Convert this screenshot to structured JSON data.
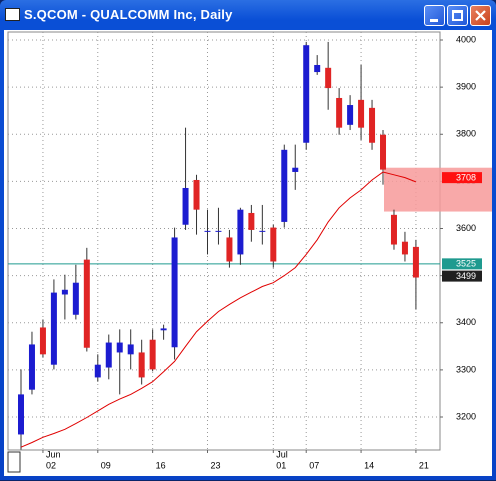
{
  "chart_data": {
    "type": "candlestick",
    "title": "S.QCOM - QUALCOMM Inc, Daily",
    "categories": [
      null,
      null,
      "02",
      null,
      null,
      null,
      null,
      "09",
      null,
      null,
      null,
      null,
      "16",
      null,
      null,
      null,
      null,
      "23",
      null,
      null,
      null,
      null,
      null,
      "01",
      null,
      null,
      "07",
      null,
      null,
      null,
      null,
      "14",
      null,
      null,
      null,
      null,
      "21"
    ],
    "months": [
      null,
      null,
      "Jun",
      null,
      null,
      null,
      null,
      null,
      null,
      null,
      null,
      null,
      null,
      null,
      null,
      null,
      null,
      null,
      null,
      null,
      null,
      null,
      null,
      "Jul",
      null,
      null,
      null,
      null,
      null,
      null,
      null,
      null,
      null,
      null,
      null,
      null,
      null
    ],
    "open": [
      3163,
      3258,
      3390,
      3311,
      3460,
      3417,
      3534,
      3284,
      3305,
      3337,
      3333,
      3337,
      3364,
      3384,
      3348,
      3608,
      3703,
      3593,
      3593,
      3581,
      3545,
      3633,
      3593,
      3602,
      3614,
      3720,
      3782,
      3932,
      3941,
      3877,
      3820,
      3873,
      3856,
      3799,
      3629,
      3572,
      3561
    ],
    "high": [
      3301,
      3381,
      3407,
      3492,
      3502,
      3523,
      3559,
      3333,
      3375,
      3386,
      3386,
      3364,
      3386,
      3396,
      3602,
      3814,
      3714,
      3640,
      3644,
      3597,
      3644,
      3650,
      3650,
      3608,
      3778,
      3778,
      3996,
      3968,
      3996,
      3898,
      3883,
      3947,
      3873,
      3809,
      3640,
      3593,
      3576
    ],
    "low": [
      3131,
      3248,
      3326,
      3301,
      3407,
      3407,
      3339,
      3275,
      3280,
      3248,
      3301,
      3269,
      3297,
      3364,
      3322,
      3597,
      3587,
      3545,
      3566,
      3517,
      3523,
      3572,
      3566,
      3517,
      3602,
      3682,
      3767,
      3926,
      3852,
      3799,
      3809,
      3788,
      3767,
      3693,
      3555,
      3530,
      3428
    ],
    "close": [
      3248,
      3354,
      3333,
      3464,
      3470,
      3485,
      3347,
      3311,
      3358,
      3358,
      3354,
      3284,
      3301,
      3388,
      3581,
      3686,
      3640,
      3595,
      3595,
      3530,
      3640,
      3597,
      3595,
      3530,
      3767,
      3729,
      3989,
      3947,
      3898,
      3814,
      3862,
      3814,
      3782,
      3725,
      3566,
      3545,
      3496
    ],
    "up_color": "#1c1cd0",
    "down_color": "#e02424",
    "ma": {
      "color": "#e00000",
      "values": [
        3136,
        3146,
        3157,
        3165,
        3174,
        3186,
        3199,
        3213,
        3227,
        3238,
        3248,
        3261,
        3275,
        3296,
        3318,
        3350,
        3381,
        3403,
        3424,
        3439,
        3453,
        3465,
        3477,
        3485,
        3500,
        3517,
        3545,
        3576,
        3614,
        3644,
        3665,
        3682,
        3703,
        3720,
        3714,
        3708,
        3699
      ]
    },
    "zone": {
      "y": [
        3636,
        3729
      ],
      "color": "#f79a9a"
    },
    "markers": [
      {
        "value": 3708,
        "color": "#ff1010",
        "line": false
      },
      {
        "value": 3525,
        "color": "#1f9a8f",
        "line": true
      },
      {
        "value": 3499,
        "color": "#202020",
        "line": false
      }
    ],
    "ylim": [
      3130,
      4017
    ],
    "yticks": [
      3200,
      3300,
      3400,
      3500,
      3600,
      3700,
      3800,
      3900,
      4000
    ],
    "grid": true
  }
}
